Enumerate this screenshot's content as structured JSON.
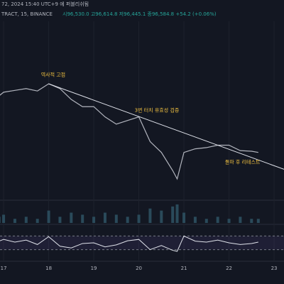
{
  "chart_data": {
    "type": "line",
    "title": "72, 2024 15:40 UTC+9 에 퍼블리쉬됨",
    "symbol": "TRACT, 15, BINANCE",
    "ohlc": "시96,530.0 고96,614.8 저96,445.1 종96,584.8 +54.2 (+0.06%)",
    "x": [
      16.9,
      17.0,
      17.25,
      17.5,
      17.75,
      18.0,
      18.25,
      18.5,
      18.75,
      19.0,
      19.25,
      19.5,
      19.75,
      20.0,
      20.25,
      20.5,
      20.75,
      20.85,
      21.0,
      21.25,
      21.5,
      21.75,
      22.0,
      22.25,
      22.5,
      22.65
    ],
    "values": [
      106000,
      106600,
      106900,
      107200,
      106800,
      108000,
      107200,
      105400,
      104200,
      104200,
      102500,
      101300,
      101900,
      102500,
      98400,
      96600,
      93600,
      92200,
      96600,
      97200,
      97400,
      97800,
      97800,
      96900,
      96800,
      96600
    ],
    "color": "#b2b5be",
    "ylim": [
      88900,
      111300
    ],
    "xlim": [
      16.92,
      23.22
    ],
    "xticks": [
      17,
      18,
      19,
      20,
      21,
      22,
      23
    ],
    "volume": [
      3,
      4,
      2,
      3,
      2,
      6,
      3,
      5,
      4,
      3,
      5,
      4,
      3,
      4,
      7,
      6,
      8,
      9,
      5,
      3,
      2,
      3,
      2,
      3,
      2,
      2
    ],
    "vlim": [
      0,
      10
    ],
    "volume_color": "#2a4a5a",
    "rsi": [
      55,
      60,
      52,
      58,
      45,
      68,
      40,
      35,
      48,
      50,
      38,
      44,
      56,
      60,
      30,
      42,
      28,
      25,
      70,
      55,
      52,
      58,
      50,
      45,
      48,
      52
    ],
    "rsi_lim": [
      0,
      100
    ],
    "rsi_bands": [
      30,
      70
    ],
    "rsi_color": "#e0e3eb",
    "trendline": {
      "x": [
        18.0,
        23.22
      ],
      "values": [
        108000,
        93800
      ]
    },
    "annotations": [
      {
        "text": "역사적 고점",
        "x": 18.1,
        "y": 109500
      },
      {
        "text": "3번 터치 유효성 검증",
        "x": 20.4,
        "y": 103600
      },
      {
        "text": "돌파 후 리테스트",
        "x": 22.3,
        "y": 95000
      }
    ],
    "annotation_color": "#f0c040"
  }
}
